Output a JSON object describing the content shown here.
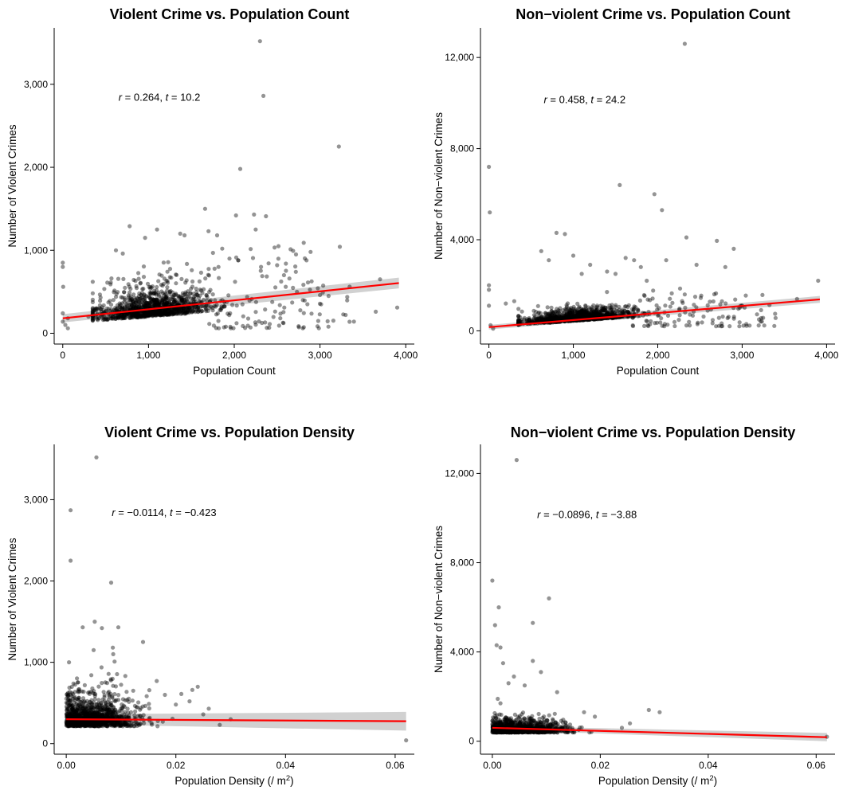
{
  "chart_data": [
    {
      "type": "scatter",
      "title": "Violent Crime vs. Population Count",
      "xlabel": "Population Count",
      "ylabel": "Number of Violent Crimes",
      "xlim": [
        -100,
        4100
      ],
      "ylim": [
        -130,
        3680
      ],
      "x_ticks": [
        0,
        1000,
        2000,
        3000,
        4000
      ],
      "x_tick_labels": [
        "0",
        "1,000",
        "2,000",
        "3,000",
        "4,000"
      ],
      "y_ticks": [
        0,
        1000,
        2000,
        3000
      ],
      "y_tick_labels": [
        "0",
        "1,000",
        "2,000",
        "3,000"
      ],
      "stat_parts": [
        "r",
        " = 0.264,  ",
        "t",
        " = 10.2"
      ],
      "stat_pos": [
        650,
        2800
      ],
      "fit": {
        "x": [
          0,
          3920
        ],
        "y": [
          180,
          605
        ],
        "band": [
          [
            0,
            130,
            230
          ],
          [
            3920,
            540,
            670
          ]
        ]
      },
      "points": [
        [
          0,
          850
        ],
        [
          0,
          800
        ],
        [
          0,
          240
        ],
        [
          0,
          140
        ],
        [
          5,
          560
        ],
        [
          30,
          100
        ],
        [
          60,
          60
        ],
        [
          60,
          180
        ],
        [
          300,
          200
        ],
        [
          620,
          1000
        ],
        [
          700,
          960
        ],
        [
          780,
          1290
        ],
        [
          960,
          1150
        ],
        [
          1100,
          1250
        ],
        [
          1370,
          1200
        ],
        [
          1420,
          1180
        ],
        [
          1660,
          1500
        ],
        [
          1700,
          1230
        ],
        [
          1800,
          1180
        ],
        [
          1860,
          1020
        ],
        [
          2020,
          1420
        ],
        [
          2070,
          1980
        ],
        [
          2230,
          1430
        ],
        [
          2300,
          3520
        ],
        [
          2340,
          2860
        ],
        [
          2370,
          1410
        ],
        [
          2250,
          1250
        ],
        [
          2500,
          820
        ],
        [
          2580,
          700
        ],
        [
          2720,
          950
        ],
        [
          2810,
          1090
        ],
        [
          2890,
          980
        ],
        [
          3000,
          460
        ],
        [
          3220,
          2250
        ],
        [
          3650,
          260
        ],
        [
          3700,
          650
        ],
        [
          3900,
          310
        ],
        [
          2600,
          560
        ],
        [
          2800,
          400
        ],
        [
          3100,
          450
        ]
      ],
      "cloud": {
        "count": 1100,
        "seed": 11,
        "x_mean": 1050,
        "x_sd": 330,
        "x_range": [
          350,
          2500
        ],
        "y_mean": 260,
        "y_sd": 170,
        "y_range": [
          25,
          1100
        ],
        "x_slope_per_1000": 80
      },
      "tail": {
        "count": 120,
        "seed": 12,
        "x_range": [
          1700,
          3400
        ],
        "y_range": [
          60,
          1100
        ]
      }
    },
    {
      "type": "scatter",
      "title": "Non−violent Crime vs. Population Count",
      "xlabel": "Population Count",
      "ylabel": "Number of Non−violent Crimes",
      "xlim": [
        -100,
        4100
      ],
      "ylim": [
        -580,
        13300
      ],
      "x_ticks": [
        0,
        1000,
        2000,
        3000,
        4000
      ],
      "x_tick_labels": [
        "0",
        "1,000",
        "2,000",
        "3,000",
        "4,000"
      ],
      "y_ticks": [
        0,
        4000,
        8000,
        12000
      ],
      "y_tick_labels": [
        "0",
        "4,000",
        "8,000",
        "12,000"
      ],
      "stat_parts": [
        "r",
        " = 0.458,  ",
        "t",
        " = 24.2"
      ],
      "stat_pos": [
        650,
        10000
      ],
      "fit": {
        "x": [
          0,
          3920
        ],
        "y": [
          160,
          1380
        ],
        "band": [
          [
            0,
            60,
            260
          ],
          [
            3920,
            1230,
            1530
          ]
        ]
      },
      "points": [
        [
          0,
          7200
        ],
        [
          10,
          5200
        ],
        [
          0,
          2000
        ],
        [
          0,
          1800
        ],
        [
          0,
          1100
        ],
        [
          20,
          250
        ],
        [
          50,
          100
        ],
        [
          200,
          1200
        ],
        [
          300,
          1300
        ],
        [
          620,
          3500
        ],
        [
          710,
          3100
        ],
        [
          800,
          4300
        ],
        [
          900,
          4250
        ],
        [
          1000,
          3300
        ],
        [
          1100,
          2500
        ],
        [
          1200,
          2900
        ],
        [
          1550,
          6400
        ],
        [
          1620,
          3200
        ],
        [
          1720,
          3100
        ],
        [
          1870,
          2200
        ],
        [
          1960,
          6000
        ],
        [
          2050,
          5300
        ],
        [
          2100,
          3100
        ],
        [
          2320,
          12600
        ],
        [
          2340,
          4100
        ],
        [
          2460,
          2900
        ],
        [
          2700,
          3950
        ],
        [
          2800,
          2800
        ],
        [
          2900,
          3600
        ],
        [
          3000,
          1100
        ],
        [
          3200,
          500
        ],
        [
          3650,
          1400
        ],
        [
          3900,
          2200
        ],
        [
          1800,
          2800
        ],
        [
          1500,
          2500
        ],
        [
          1400,
          2600
        ]
      ],
      "cloud": {
        "count": 1100,
        "seed": 21,
        "x_mean": 1050,
        "x_sd": 330,
        "x_range": [
          350,
          2500
        ],
        "y_mean": 520,
        "y_sd": 250,
        "y_range": [
          80,
          1800
        ],
        "x_slope_per_1000": 260
      },
      "tail": {
        "count": 120,
        "seed": 22,
        "x_range": [
          1700,
          3400
        ],
        "y_range": [
          200,
          1900
        ]
      }
    },
    {
      "type": "scatter",
      "title": "Violent Crime vs. Population Density",
      "xlabel_parts": [
        "Population Density (/ m",
        "2",
        ")"
      ],
      "ylabel": "Number of Violent Crimes",
      "xlim": [
        -0.0022,
        0.0635
      ],
      "ylim": [
        -130,
        3680
      ],
      "x_ticks": [
        0,
        0.02,
        0.04,
        0.06
      ],
      "x_tick_labels": [
        "0.00",
        "0.02",
        "0.04",
        "0.06"
      ],
      "y_ticks": [
        0,
        1000,
        2000,
        3000
      ],
      "y_tick_labels": [
        "0",
        "1,000",
        "2,000",
        "3,000"
      ],
      "stat_parts": [
        "r",
        " = −0.0114,  ",
        "t",
        " = −0.423"
      ],
      "stat_pos": [
        0.0083,
        2800
      ],
      "fit": {
        "x": [
          0,
          0.062
        ],
        "y": [
          300,
          275
        ],
        "band": [
          [
            0,
            240,
            360
          ],
          [
            0.062,
            160,
            390
          ]
        ]
      },
      "points": [
        [
          0.0008,
          2870
        ],
        [
          0.0008,
          2250
        ],
        [
          0.0055,
          3520
        ],
        [
          0.0082,
          1980
        ],
        [
          0.0052,
          1500
        ],
        [
          0.0065,
          1420
        ],
        [
          0.0005,
          1000
        ],
        [
          0.003,
          1430
        ],
        [
          0.0165,
          770
        ],
        [
          0.023,
          660
        ],
        [
          0.024,
          700
        ],
        [
          0.0225,
          520
        ],
        [
          0.025,
          360
        ],
        [
          0.026,
          430
        ],
        [
          0.02,
          480
        ],
        [
          0.028,
          230
        ],
        [
          0.03,
          300
        ],
        [
          0.062,
          40
        ],
        [
          0.021,
          610
        ],
        [
          0.018,
          600
        ],
        [
          0.014,
          1250
        ],
        [
          0.0095,
          1430
        ],
        [
          0.005,
          1150
        ],
        [
          0.0085,
          1180
        ]
      ],
      "cloud": {
        "count": 1150,
        "seed": 31,
        "x_mean": 0.0085,
        "x_sd": 0.0045,
        "x_range": [
          0,
          0.022
        ],
        "y_mean": 280,
        "y_sd": 190,
        "y_range": [
          20,
          1100
        ],
        "x_slope_per_1000": 0
      }
    },
    {
      "type": "scatter",
      "title": "Non−violent Crime vs. Population Density",
      "xlabel_parts": [
        "Population Density (/ m",
        "2",
        ")"
      ],
      "ylabel": "Number of Non−violent Crimes",
      "xlim": [
        -0.0022,
        0.0635
      ],
      "ylim": [
        -580,
        13300
      ],
      "x_ticks": [
        0,
        0.02,
        0.04,
        0.06
      ],
      "x_tick_labels": [
        "0.00",
        "0.02",
        "0.04",
        "0.06"
      ],
      "y_ticks": [
        0,
        4000,
        8000,
        12000
      ],
      "y_tick_labels": [
        "0",
        "4,000",
        "8,000",
        "12,000"
      ],
      "stat_parts": [
        "r",
        " = −0.0896,  ",
        "t",
        " = −3.88"
      ],
      "stat_pos": [
        0.0083,
        10000
      ],
      "fit": {
        "x": [
          0,
          0.062
        ],
        "y": [
          600,
          180
        ],
        "band": [
          [
            0,
            510,
            690
          ],
          [
            0.062,
            0,
            370
          ]
        ]
      },
      "points": [
        [
          0,
          7200
        ],
        [
          0.0005,
          5200
        ],
        [
          0.0012,
          6000
        ],
        [
          0.0008,
          4300
        ],
        [
          0.0015,
          4200
        ],
        [
          0.0045,
          12600
        ],
        [
          0.0075,
          5300
        ],
        [
          0.0105,
          6400
        ],
        [
          0.0075,
          3600
        ],
        [
          0.009,
          3100
        ],
        [
          0.012,
          2200
        ],
        [
          0.004,
          2900
        ],
        [
          0.003,
          2600
        ],
        [
          0.0255,
          800
        ],
        [
          0.029,
          1400
        ],
        [
          0.031,
          1300
        ],
        [
          0.062,
          200
        ],
        [
          0.017,
          1300
        ],
        [
          0.019,
          1100
        ],
        [
          0.024,
          600
        ],
        [
          0.002,
          3500
        ],
        [
          0.006,
          2500
        ],
        [
          0.001,
          1900
        ],
        [
          0.0015,
          1700
        ]
      ],
      "cloud": {
        "count": 1150,
        "seed": 41,
        "x_mean": 0.0085,
        "x_sd": 0.0045,
        "x_range": [
          0,
          0.022
        ],
        "y_mean": 480,
        "y_sd": 260,
        "y_range": [
          60,
          1800
        ],
        "x_slope_per_1000": 0
      }
    }
  ]
}
